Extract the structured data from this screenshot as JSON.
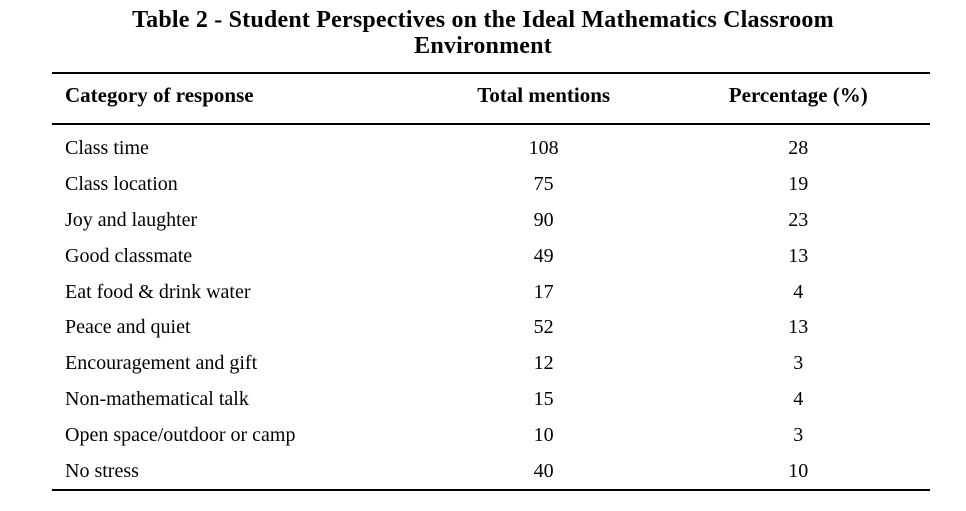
{
  "page": {
    "background": "#ffffff",
    "text_color": "#000000",
    "rule_color": "#000000"
  },
  "title": {
    "line1": "Table 2 - Student Perspectives on the Ideal Mathematics Classroom",
    "line2": "Environment"
  },
  "table": {
    "headers": {
      "category": "Category of response",
      "total": "Total mentions",
      "percentage": "Percentage (%)"
    },
    "rows": [
      {
        "category": "Class time",
        "total": "108",
        "percentage": "28"
      },
      {
        "category": "Class location",
        "total": "75",
        "percentage": "19"
      },
      {
        "category": "Joy and laughter",
        "total": "90",
        "percentage": "23"
      },
      {
        "category": "Good classmate",
        "total": "49",
        "percentage": "13"
      },
      {
        "category": "Eat food & drink water",
        "total": "17",
        "percentage": "4"
      },
      {
        "category": "Peace and quiet",
        "total": "52",
        "percentage": "13"
      },
      {
        "category": "Encouragement and gift",
        "total": "12",
        "percentage": "3"
      },
      {
        "category": "Non-mathematical talk",
        "total": "15",
        "percentage": "4"
      },
      {
        "category": "Open space/outdoor or camp",
        "total": "10",
        "percentage": "3"
      },
      {
        "category": "No stress",
        "total": "40",
        "percentage": "10"
      }
    ]
  },
  "chart_data": {
    "type": "table",
    "title": "Table 2 - Student Perspectives on the Ideal Mathematics Classroom Environment",
    "columns": [
      "Category of response",
      "Total mentions",
      "Percentage (%)"
    ],
    "rows": [
      [
        "Class time",
        108,
        28
      ],
      [
        "Class location",
        75,
        19
      ],
      [
        "Joy and laughter",
        90,
        23
      ],
      [
        "Good classmate",
        49,
        13
      ],
      [
        "Eat food & drink water",
        17,
        4
      ],
      [
        "Peace and quiet",
        52,
        13
      ],
      [
        "Encouragement and gift",
        12,
        3
      ],
      [
        "Non-mathematical talk",
        15,
        4
      ],
      [
        "Open space/outdoor or camp",
        10,
        3
      ],
      [
        "No stress",
        40,
        10
      ]
    ]
  }
}
